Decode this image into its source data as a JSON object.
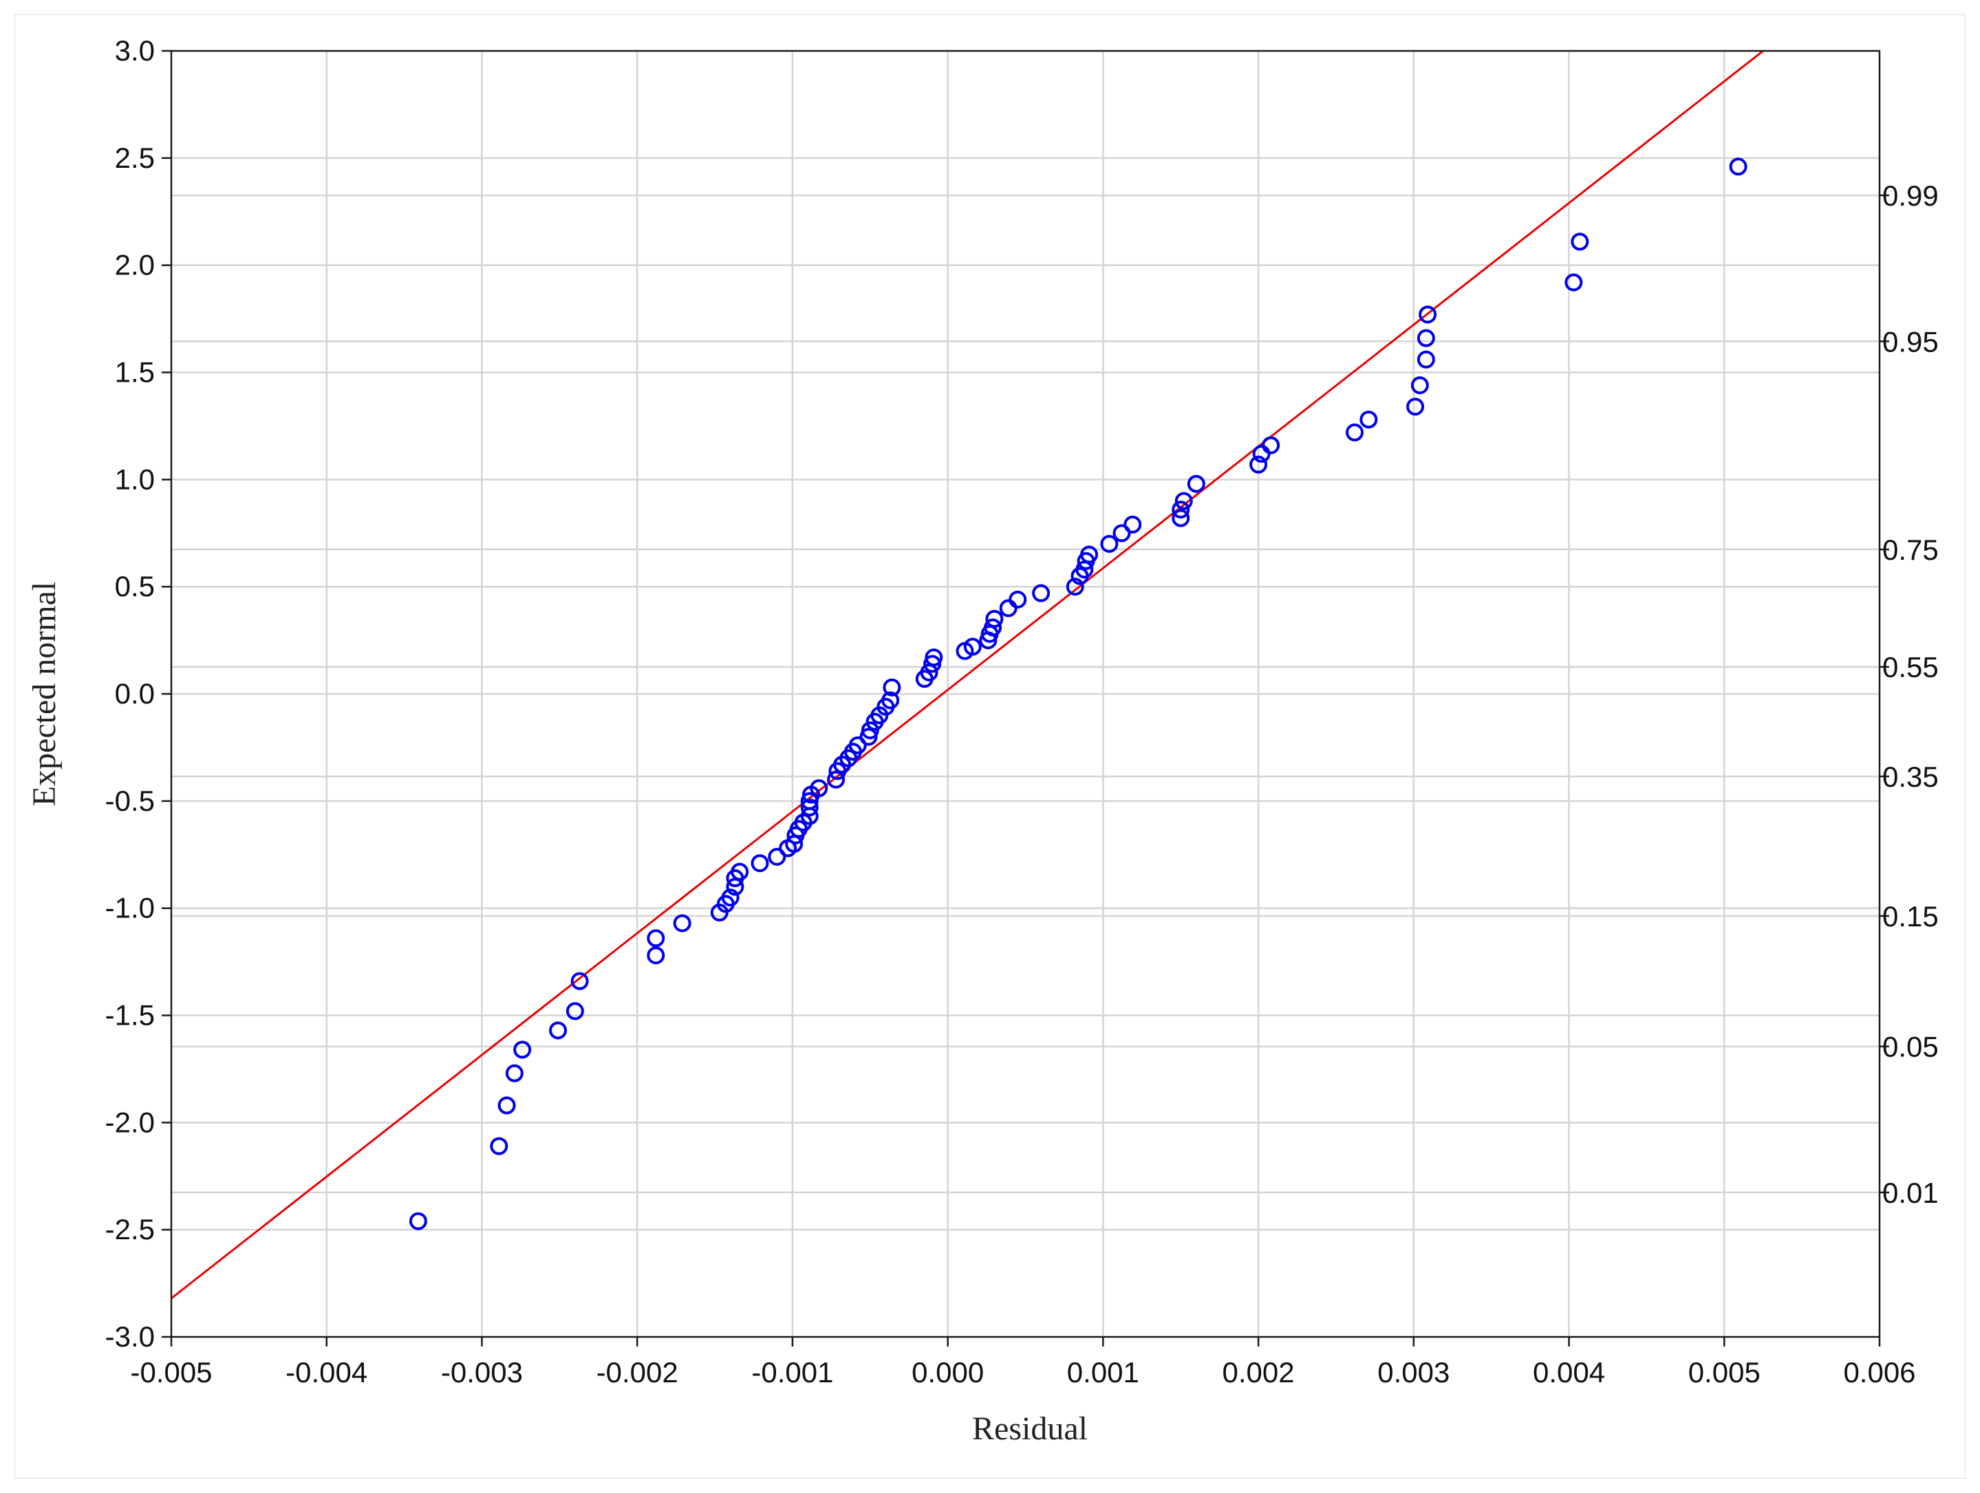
{
  "chart_data": {
    "type": "scatter",
    "title": "",
    "xlabel": "Residual",
    "ylabel": "Expected normal",
    "xlim": [
      -0.005,
      0.006
    ],
    "ylim": [
      -3.0,
      3.0
    ],
    "x_ticks": [
      "-0.005",
      "-0.004",
      "-0.003",
      "-0.002",
      "-0.001",
      "0.000",
      "0.001",
      "0.002",
      "0.003",
      "0.004",
      "0.005",
      "0.006"
    ],
    "y_ticks": [
      "-3.0",
      "-2.5",
      "-2.0",
      "-1.5",
      "-1.0",
      "-0.5",
      "0.0",
      "0.5",
      "1.0",
      "1.5",
      "2.0",
      "2.5",
      "3.0"
    ],
    "prob_ticks": [
      {
        "label": "0.99",
        "z": 2.326
      },
      {
        "label": "0.95",
        "z": 1.645
      },
      {
        "label": "0.75",
        "z": 0.674
      },
      {
        "label": "0.55",
        "z": 0.126
      },
      {
        "label": "0.35",
        "z": -0.385
      },
      {
        "label": "0.15",
        "z": -1.036
      },
      {
        "label": "0.05",
        "z": -1.645
      },
      {
        "label": "0.01",
        "z": -2.326
      }
    ],
    "grid": true,
    "colors": {
      "points": "#0000ee",
      "line": "#ee0000"
    },
    "reference_line": {
      "x": [
        -0.005,
        0.00525
      ],
      "y": [
        -2.82,
        3.0
      ]
    },
    "points": [
      [
        -0.00341,
        -2.46
      ],
      [
        -0.00289,
        -2.11
      ],
      [
        -0.00284,
        -1.92
      ],
      [
        -0.00279,
        -1.77
      ],
      [
        -0.00274,
        -1.66
      ],
      [
        -0.00251,
        -1.57
      ],
      [
        -0.0024,
        -1.48
      ],
      [
        -0.00237,
        -1.34
      ],
      [
        -0.00188,
        -1.22
      ],
      [
        -0.00188,
        -1.14
      ],
      [
        -0.00171,
        -1.07
      ],
      [
        -0.00147,
        -1.02
      ],
      [
        -0.00143,
        -0.98
      ],
      [
        -0.0014,
        -0.95
      ],
      [
        -0.00137,
        -0.9
      ],
      [
        -0.00137,
        -0.86
      ],
      [
        -0.00134,
        -0.83
      ],
      [
        -0.00121,
        -0.79
      ],
      [
        -0.0011,
        -0.76
      ],
      [
        -0.00103,
        -0.72
      ],
      [
        -0.00099,
        -0.7
      ],
      [
        -0.00098,
        -0.66
      ],
      [
        -0.00096,
        -0.63
      ],
      [
        -0.00093,
        -0.6
      ],
      [
        -0.00089,
        -0.57
      ],
      [
        -0.00089,
        -0.53
      ],
      [
        -0.00089,
        -0.5
      ],
      [
        -0.00088,
        -0.47
      ],
      [
        -0.00083,
        -0.44
      ],
      [
        -0.00072,
        -0.4
      ],
      [
        -0.00071,
        -0.36
      ],
      [
        -0.00068,
        -0.33
      ],
      [
        -0.00064,
        -0.3
      ],
      [
        -0.00061,
        -0.27
      ],
      [
        -0.00058,
        -0.24
      ],
      [
        -0.00051,
        -0.2
      ],
      [
        -0.0005,
        -0.17
      ],
      [
        -0.00047,
        -0.13
      ],
      [
        -0.00044,
        -0.1
      ],
      [
        -0.0004,
        -0.06
      ],
      [
        -0.00037,
        -0.03
      ],
      [
        -0.00036,
        0.03
      ],
      [
        -0.00015,
        0.07
      ],
      [
        -0.00012,
        0.1
      ],
      [
        -0.0001,
        0.14
      ],
      [
        -9e-05,
        0.17
      ],
      [
        0.00011,
        0.2
      ],
      [
        0.00016,
        0.22
      ],
      [
        0.00026,
        0.25
      ],
      [
        0.00027,
        0.28
      ],
      [
        0.00029,
        0.31
      ],
      [
        0.0003,
        0.35
      ],
      [
        0.00039,
        0.4
      ],
      [
        0.00045,
        0.44
      ],
      [
        0.0006,
        0.47
      ],
      [
        0.00082,
        0.5
      ],
      [
        0.00085,
        0.55
      ],
      [
        0.00088,
        0.58
      ],
      [
        0.00089,
        0.62
      ],
      [
        0.00091,
        0.65
      ],
      [
        0.00104,
        0.7
      ],
      [
        0.00112,
        0.75
      ],
      [
        0.00119,
        0.79
      ],
      [
        0.0015,
        0.82
      ],
      [
        0.0015,
        0.86
      ],
      [
        0.00152,
        0.9
      ],
      [
        0.0016,
        0.98
      ],
      [
        0.002,
        1.07
      ],
      [
        0.00202,
        1.12
      ],
      [
        0.00208,
        1.16
      ],
      [
        0.00262,
        1.22
      ],
      [
        0.00271,
        1.28
      ],
      [
        0.00301,
        1.34
      ],
      [
        0.00304,
        1.44
      ],
      [
        0.00308,
        1.56
      ],
      [
        0.00308,
        1.66
      ],
      [
        0.00309,
        1.77
      ],
      [
        0.00403,
        1.92
      ],
      [
        0.00407,
        2.11
      ],
      [
        0.00509,
        2.46
      ]
    ]
  }
}
